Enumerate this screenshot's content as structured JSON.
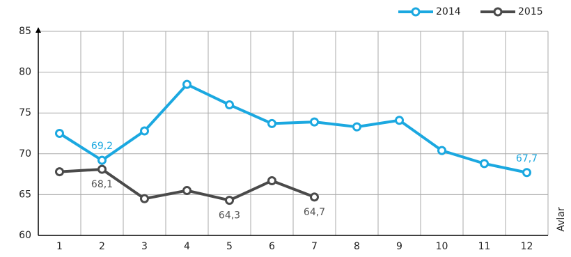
{
  "chart_data": {
    "type": "line",
    "x_label": "Avlar",
    "categories": [
      "1",
      "2",
      "3",
      "4",
      "5",
      "6",
      "7",
      "8",
      "9",
      "10",
      "11",
      "12"
    ],
    "series": [
      {
        "name": "2014",
        "color": "#1ba8e0",
        "values": [
          72.5,
          69.2,
          72.8,
          78.5,
          76.0,
          73.7,
          73.9,
          73.3,
          74.1,
          70.4,
          68.8,
          67.7
        ],
        "value_labels": [
          null,
          "69,2",
          null,
          null,
          null,
          null,
          null,
          null,
          null,
          null,
          null,
          "67,7"
        ]
      },
      {
        "name": "2015",
        "color": "#4a4a4a",
        "values": [
          67.8,
          68.1,
          64.5,
          65.5,
          64.3,
          66.7,
          64.7,
          null,
          null,
          null,
          null,
          null
        ],
        "value_labels": [
          null,
          "68,1",
          null,
          null,
          "64,3",
          null,
          "64,7",
          null,
          null,
          null,
          null,
          null
        ]
      }
    ],
    "ylim": [
      60,
      85
    ],
    "yticks": [
      60,
      65,
      70,
      75,
      80,
      85
    ],
    "grid": true,
    "legend": "top-right"
  }
}
